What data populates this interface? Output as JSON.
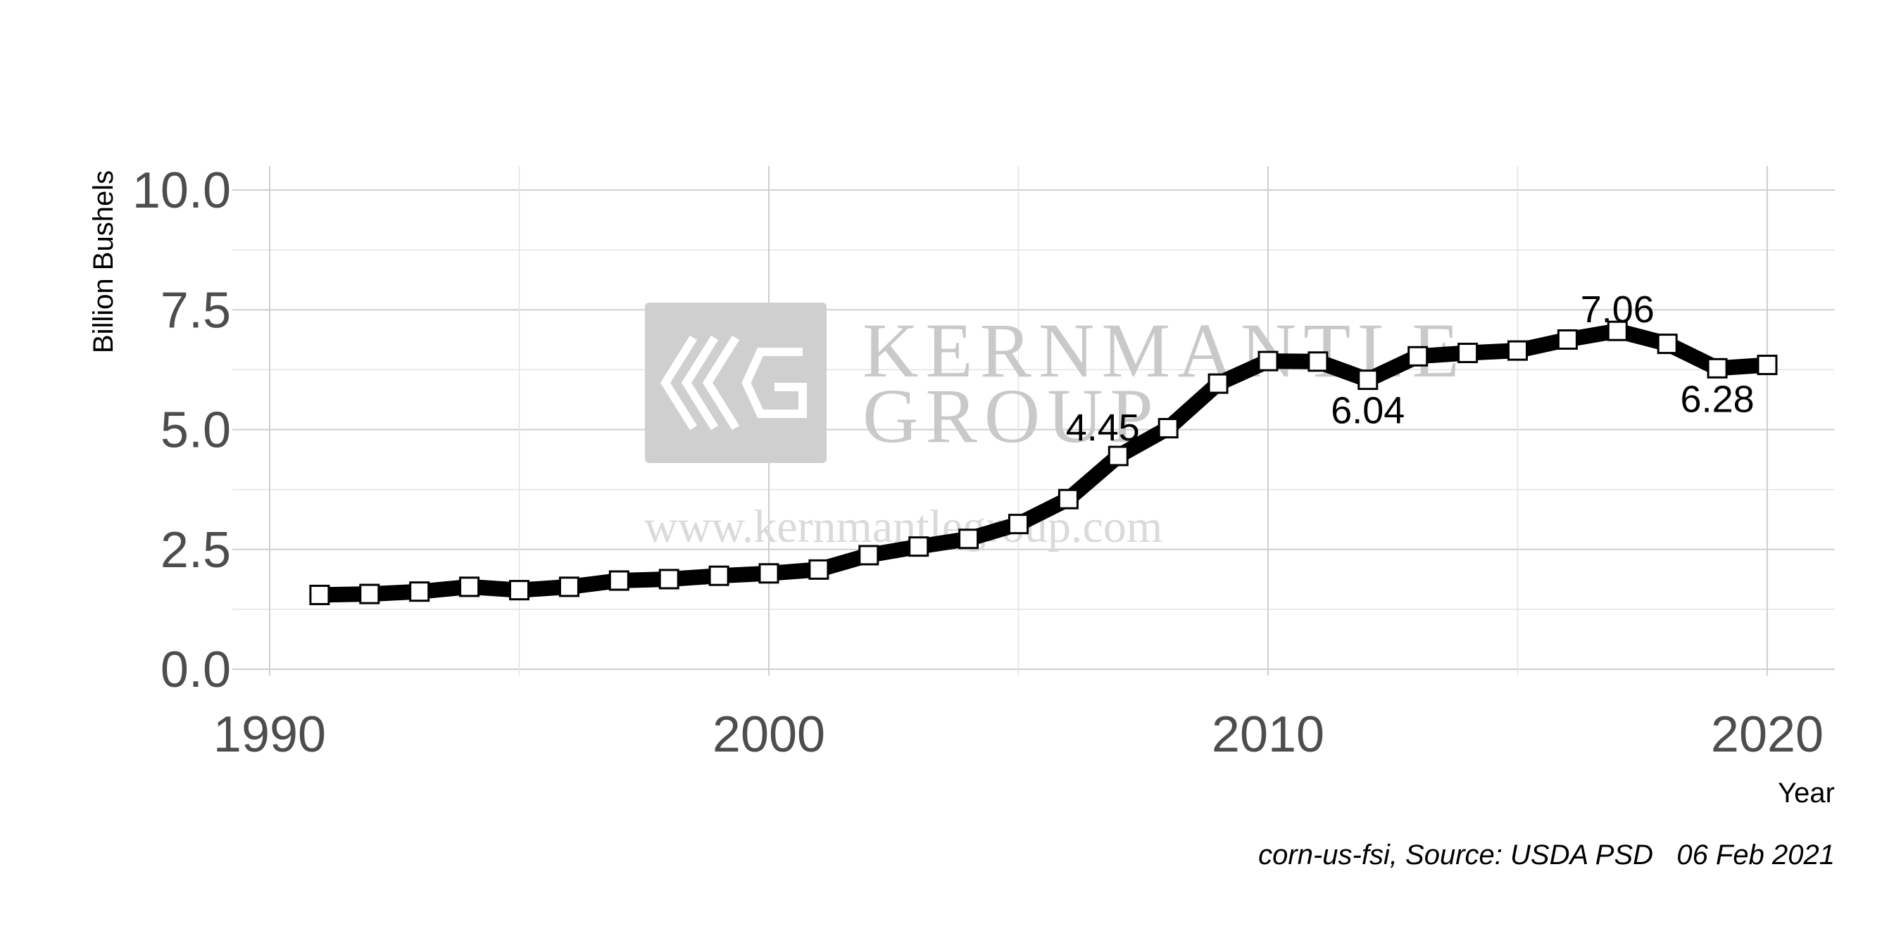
{
  "chart_data": {
    "type": "line",
    "xlabel": "Year",
    "ylabel": "Billion Bushels",
    "xlim": [
      1990,
      2020
    ],
    "ylim": [
      0,
      10
    ],
    "x_ticks": [
      "1990",
      "2000",
      "2010",
      "2020"
    ],
    "y_ticks": [
      "0.0",
      "2.5",
      "5.0",
      "7.5",
      "10.0"
    ],
    "grid": true,
    "marker": "square",
    "series": [
      {
        "x": [
          1991,
          1992,
          1993,
          1994,
          1995,
          1996,
          1997,
          1998,
          1999,
          2000,
          2001,
          2002,
          2003,
          2004,
          2005,
          2006,
          2007,
          2008,
          2009,
          2010,
          2011,
          2012,
          2013,
          2014,
          2015,
          2016,
          2017,
          2018,
          2019,
          2020
        ],
        "values": [
          1.55,
          1.57,
          1.62,
          1.72,
          1.65,
          1.72,
          1.85,
          1.88,
          1.95,
          2.0,
          2.08,
          2.38,
          2.56,
          2.72,
          3.03,
          3.55,
          4.45,
          5.03,
          5.96,
          6.43,
          6.42,
          6.04,
          6.53,
          6.6,
          6.65,
          6.88,
          7.06,
          6.79,
          6.28,
          6.35
        ]
      }
    ],
    "annotations": [
      {
        "x": 2007,
        "y": 4.45,
        "text": "4.45"
      },
      {
        "x": 2012,
        "y": 6.04,
        "text": "6.04"
      },
      {
        "x": 2017,
        "y": 7.06,
        "text": "7.06"
      },
      {
        "x": 2019,
        "y": 6.28,
        "text": "6.28"
      }
    ],
    "caption": "corn-us-fsi, Source: USDA PSD   06 Feb 2021"
  },
  "watermark": {
    "name_line1": "KERNMANTLE",
    "name_line2": "GROUP",
    "url": "www.kernmantlegroup.com"
  }
}
